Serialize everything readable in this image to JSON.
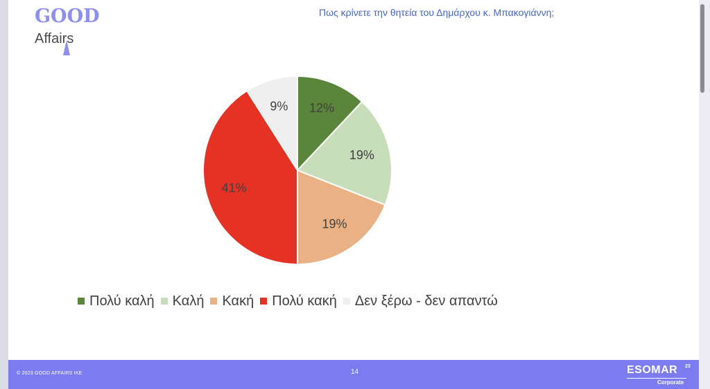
{
  "brand": {
    "logo_word1": "GOOD",
    "logo_word2": "Affairs",
    "logo_color": "#8f8ff0"
  },
  "title": "Πως κρίνετε την θητεία του Δημάρχου κ. Μπακογιάννη;",
  "chart_data": {
    "type": "pie",
    "title": "Πως κρίνετε την θητεία του Δημάρχου κ. Μπακογιάννη;",
    "categories": [
      "Πολύ καλή",
      "Καλή",
      "Κακή",
      "Πολύ κακή",
      "Δεν ξέρω - δεν απαντώ"
    ],
    "values": [
      12,
      19,
      19,
      41,
      9
    ],
    "labels": [
      "12%",
      "19%",
      "19%",
      "41%",
      "9%"
    ],
    "colors": [
      "#5a853a",
      "#c8deba",
      "#eab184",
      "#e53225",
      "#efefef"
    ],
    "start_angle": "12 o'clock",
    "direction": "clockwise",
    "legend_position": "bottom"
  },
  "footer": {
    "copyright": "© 2023 GOOD AFFAIRS IKE",
    "page_number": "14",
    "esomar_main": "ESOMAR",
    "esomar_sup": "23",
    "esomar_sub": "Corporate",
    "background": "#7c7cf0"
  }
}
